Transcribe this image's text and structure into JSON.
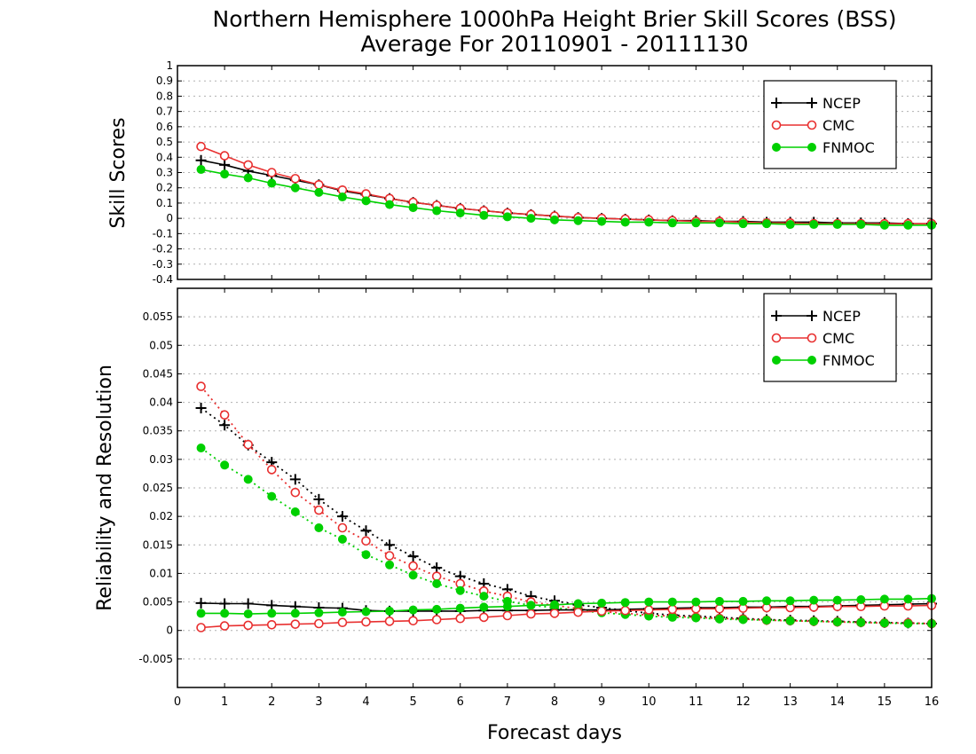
{
  "chart_data": [
    {
      "type": "line",
      "title": "Northern Hemisphere 1000hPa Height Brier Skill Scores (BSS)",
      "subtitle": "Average For 20110901 - 20111130",
      "xlabel": "",
      "ylabel": "Skill Scores",
      "xlim": [
        0,
        16
      ],
      "ylim": [
        -0.4,
        1
      ],
      "yticks": [
        "1",
        "0.9",
        "0.8",
        "0.7",
        "0.6",
        "0.5",
        "0.4",
        "0.3",
        "0.2",
        "0.1",
        "0",
        "-0.1",
        "-0.2",
        "-0.3",
        "-0.4"
      ],
      "grid": true,
      "legend_position": "top-right",
      "x": [
        0.5,
        1,
        1.5,
        2,
        2.5,
        3,
        3.5,
        4,
        4.5,
        5,
        5.5,
        6,
        6.5,
        7,
        7.5,
        8,
        8.5,
        9,
        9.5,
        10,
        10.5,
        11,
        11.5,
        12,
        12.5,
        13,
        13.5,
        14,
        14.5,
        15,
        15.5,
        16
      ],
      "series": [
        {
          "name": "NCEP",
          "color": "#000000",
          "marker": "plus",
          "values": [
            0.38,
            0.35,
            0.31,
            0.28,
            0.25,
            0.22,
            0.18,
            0.155,
            0.13,
            0.105,
            0.085,
            0.065,
            0.05,
            0.035,
            0.025,
            0.015,
            0.005,
            0.0,
            -0.005,
            -0.01,
            -0.015,
            -0.015,
            -0.02,
            -0.02,
            -0.025,
            -0.025,
            -0.025,
            -0.03,
            -0.03,
            -0.03,
            -0.035,
            -0.035
          ]
        },
        {
          "name": "CMC",
          "color": "#e83030",
          "marker": "open-circle",
          "values": [
            0.47,
            0.41,
            0.35,
            0.3,
            0.26,
            0.22,
            0.185,
            0.16,
            0.13,
            0.105,
            0.085,
            0.065,
            0.05,
            0.035,
            0.025,
            0.015,
            0.005,
            0.0,
            -0.005,
            -0.01,
            -0.015,
            -0.02,
            -0.02,
            -0.025,
            -0.03,
            -0.03,
            -0.035,
            -0.035,
            -0.035,
            -0.035,
            -0.035,
            -0.035
          ]
        },
        {
          "name": "FNMOC",
          "color": "#00d000",
          "marker": "filled-circle",
          "values": [
            0.32,
            0.29,
            0.265,
            0.23,
            0.2,
            0.17,
            0.14,
            0.115,
            0.09,
            0.07,
            0.05,
            0.035,
            0.02,
            0.01,
            0.0,
            -0.01,
            -0.015,
            -0.02,
            -0.025,
            -0.025,
            -0.03,
            -0.03,
            -0.03,
            -0.035,
            -0.035,
            -0.04,
            -0.04,
            -0.04,
            -0.04,
            -0.045,
            -0.045,
            -0.045
          ]
        }
      ]
    },
    {
      "type": "line",
      "xlabel": "Forecast days",
      "ylabel": "Reliability and Resolution",
      "xlim": [
        0,
        16
      ],
      "ylim": [
        -0.01,
        0.06
      ],
      "xticks": [
        "0",
        "1",
        "2",
        "3",
        "4",
        "5",
        "6",
        "7",
        "8",
        "9",
        "10",
        "11",
        "12",
        "13",
        "14",
        "15",
        "16"
      ],
      "yticks": [
        "0.055",
        "0.05",
        "0.045",
        "0.04",
        "0.035",
        "0.03",
        "0.025",
        "0.02",
        "0.015",
        "0.01",
        "0.005",
        "0",
        "-0.005"
      ],
      "grid": true,
      "legend_position": "top-right",
      "x": [
        0.5,
        1,
        1.5,
        2,
        2.5,
        3,
        3.5,
        4,
        4.5,
        5,
        5.5,
        6,
        6.5,
        7,
        7.5,
        8,
        8.5,
        9,
        9.5,
        10,
        10.5,
        11,
        11.5,
        12,
        12.5,
        13,
        13.5,
        14,
        14.5,
        15,
        15.5,
        16
      ],
      "series": [
        {
          "name": "NCEP",
          "color": "#000000",
          "marker": "plus",
          "style": "dotted",
          "values": [
            0.039,
            0.036,
            0.0325,
            0.0295,
            0.0265,
            0.023,
            0.02,
            0.0175,
            0.015,
            0.013,
            0.011,
            0.0095,
            0.0082,
            0.0072,
            0.006,
            0.0052,
            0.0045,
            0.004,
            0.0035,
            0.003,
            0.0027,
            0.0025,
            0.0023,
            0.0021,
            0.0019,
            0.0018,
            0.0017,
            0.0016,
            0.0015,
            0.0014,
            0.0013,
            0.0012
          ]
        },
        {
          "name": "CMC",
          "color": "#e83030",
          "marker": "open-circle",
          "style": "dotted",
          "values": [
            0.0428,
            0.0378,
            0.0326,
            0.0282,
            0.0242,
            0.0211,
            0.018,
            0.0157,
            0.0131,
            0.0113,
            0.0095,
            0.0082,
            0.0069,
            0.006,
            0.005,
            0.0044,
            0.0038,
            0.0033,
            0.003,
            0.0027,
            0.0025,
            0.0023,
            0.0021,
            0.002,
            0.0018,
            0.0017,
            0.0016,
            0.0015,
            0.0014,
            0.0013,
            0.0013,
            0.0012
          ]
        },
        {
          "name": "FNMOC",
          "color": "#00d000",
          "marker": "filled-circle",
          "style": "dotted",
          "values": [
            0.032,
            0.029,
            0.0265,
            0.0235,
            0.0208,
            0.018,
            0.016,
            0.0133,
            0.0115,
            0.0097,
            0.0082,
            0.007,
            0.006,
            0.0051,
            0.0044,
            0.004,
            0.0035,
            0.0031,
            0.0028,
            0.0025,
            0.0023,
            0.0022,
            0.002,
            0.0019,
            0.0018,
            0.0017,
            0.0016,
            0.0015,
            0.0014,
            0.0013,
            0.0012,
            0.0012
          ]
        },
        {
          "name": "NCEP",
          "color": "#000000",
          "marker": "plus",
          "style": "solid",
          "legend": false,
          "values": [
            0.0048,
            0.0047,
            0.0047,
            0.0044,
            0.0042,
            0.004,
            0.0039,
            0.0035,
            0.0034,
            0.0034,
            0.0034,
            0.0034,
            0.0035,
            0.0035,
            0.0035,
            0.0036,
            0.0036,
            0.0036,
            0.0037,
            0.0038,
            0.0039,
            0.004,
            0.004,
            0.0041,
            0.0041,
            0.0042,
            0.0042,
            0.0043,
            0.0044,
            0.0045,
            0.0046,
            0.0047
          ]
        },
        {
          "name": "CMC",
          "color": "#e83030",
          "marker": "open-circle",
          "style": "solid",
          "legend": false,
          "values": [
            0.0005,
            0.0008,
            0.0009,
            0.001,
            0.0011,
            0.0012,
            0.0014,
            0.0015,
            0.0016,
            0.0017,
            0.0019,
            0.0021,
            0.0023,
            0.0026,
            0.0029,
            0.003,
            0.0032,
            0.0034,
            0.0035,
            0.0036,
            0.0037,
            0.0038,
            0.0038,
            0.0039,
            0.004,
            0.004,
            0.0041,
            0.0042,
            0.0042,
            0.0043,
            0.0043,
            0.0044
          ]
        },
        {
          "name": "FNMOC",
          "color": "#00d000",
          "marker": "filled-circle",
          "style": "solid",
          "legend": false,
          "values": [
            0.003,
            0.003,
            0.0029,
            0.003,
            0.003,
            0.0031,
            0.0032,
            0.0033,
            0.0034,
            0.0036,
            0.0037,
            0.0039,
            0.0041,
            0.0042,
            0.0044,
            0.0045,
            0.0047,
            0.0048,
            0.0049,
            0.005,
            0.005,
            0.005,
            0.0051,
            0.0051,
            0.0052,
            0.0052,
            0.0053,
            0.0053,
            0.0054,
            0.0055,
            0.0055,
            0.0056
          ]
        }
      ]
    }
  ]
}
